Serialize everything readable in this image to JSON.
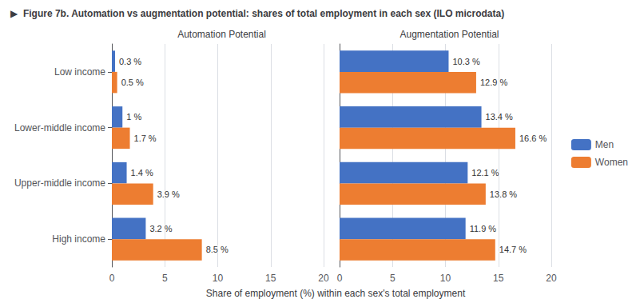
{
  "title": "▶  Figure 7b. Automation vs augmentation potential: shares of total employment in each sex (ILO microdata)",
  "xlabel": "Share of employment (%) within each sex's total employment",
  "legend": "right",
  "chart_data": [
    {
      "type": "bar",
      "orientation": "horizontal",
      "title": "Automation Potential",
      "categories": [
        "Low income",
        "Lower-middle income",
        "Upper-middle income",
        "High income"
      ],
      "series": [
        {
          "name": "Men",
          "color": "#4472C4",
          "values": [
            0.3,
            1.0,
            1.4,
            3.2
          ],
          "value_labels": [
            "0.3 %",
            "1 %",
            "1.4 %",
            "3.2 %"
          ]
        },
        {
          "name": "Women",
          "color": "#ED7D31",
          "values": [
            0.5,
            1.7,
            3.9,
            8.5
          ],
          "value_labels": [
            "0.5 %",
            "1.7 %",
            "3.9 %",
            "8.5 %"
          ]
        }
      ],
      "xlim": [
        0,
        20
      ],
      "xticks": [
        0,
        5,
        10,
        15,
        20
      ],
      "grid": true,
      "data_labels": true
    },
    {
      "type": "bar",
      "orientation": "horizontal",
      "title": "Augmentation Potential",
      "categories": [
        "Low income",
        "Lower-middle income",
        "Upper-middle income",
        "High income"
      ],
      "series": [
        {
          "name": "Men",
          "color": "#4472C4",
          "values": [
            10.3,
            13.4,
            12.1,
            11.9
          ],
          "value_labels": [
            "10.3 %",
            "13.4 %",
            "12.1 %",
            "11.9 %"
          ]
        },
        {
          "name": "Women",
          "color": "#ED7D31",
          "values": [
            12.9,
            16.6,
            13.8,
            14.7
          ],
          "value_labels": [
            "12.9 %",
            "16.6 %",
            "13.8 %",
            "14.7 %"
          ]
        }
      ],
      "xlim": [
        0,
        20
      ],
      "xticks": [
        0,
        5,
        10,
        15,
        20
      ],
      "grid": true,
      "data_labels": true,
      "tick_labels": "x"
    }
  ]
}
